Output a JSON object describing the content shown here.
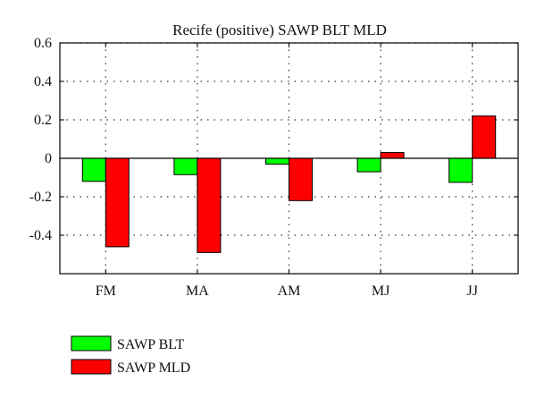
{
  "chart_data": {
    "type": "bar",
    "title": "Recife (positive) SAWP BLT MLD",
    "xlabel": "",
    "ylabel": "",
    "categories": [
      "FM",
      "MA",
      "AM",
      "MJ",
      "JJ"
    ],
    "series": [
      {
        "name": "SAWP BLT",
        "color": "#00ff00",
        "values": [
          -0.12,
          -0.085,
          -0.03,
          -0.07,
          -0.125
        ]
      },
      {
        "name": "SAWP MLD",
        "color": "#ff0000",
        "values": [
          -0.46,
          -0.49,
          -0.22,
          0.03,
          0.22
        ]
      }
    ],
    "ylim": [
      -0.6,
      0.6
    ],
    "yticks": [
      -0.4,
      -0.2,
      0,
      0.2,
      0.4,
      0.6
    ],
    "ytick_labels": [
      "-0.4",
      "-0.2",
      "0",
      "0.2",
      "0.4",
      "0.6"
    ],
    "grid": true,
    "legend_position": "bottom-left"
  }
}
